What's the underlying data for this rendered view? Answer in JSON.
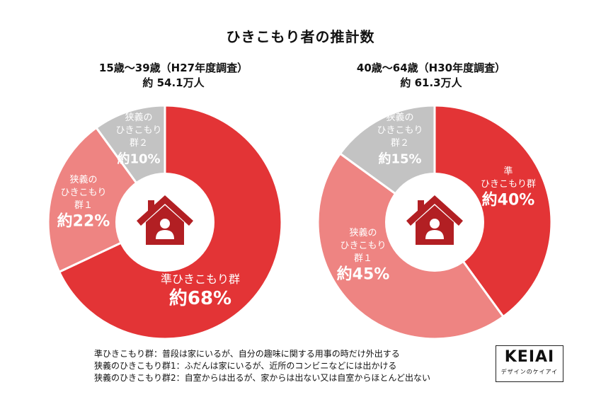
{
  "title": "ひきこもり者の推計数",
  "colors": {
    "dark_red": "#e33436",
    "light_red": "#ee8482",
    "gray": "#c3c3c3",
    "icon": "#b21f23"
  },
  "chart_data": [
    {
      "type": "pie",
      "variant": "donut",
      "title_line1": "15歳〜39歳（H27年度調査）",
      "title_line2": "約 54.1万人",
      "slices": [
        {
          "name": "準ひきこもり群",
          "value": 68,
          "color": "#e33436",
          "label_lines": [
            "準ひきこもり群"
          ],
          "value_text": "約68%"
        },
        {
          "name": "狭義のひきこもり群1",
          "value": 22,
          "color": "#ee8482",
          "label_lines": [
            "狭義の",
            "ひきこもり",
            "群１"
          ],
          "value_text": "約22%"
        },
        {
          "name": "狭義のひきこもり群2",
          "value": 10,
          "color": "#c3c3c3",
          "label_lines": [
            "狭義の",
            "ひきこもり",
            "群２"
          ],
          "value_text": "約10%"
        }
      ]
    },
    {
      "type": "pie",
      "variant": "donut",
      "title_line1": "40歳〜64歳（H30年度調査）",
      "title_line2": "約 61.3万人",
      "slices": [
        {
          "name": "準ひきこもり群",
          "value": 40,
          "color": "#e33436",
          "label_lines": [
            "準",
            "ひきこもり群"
          ],
          "value_text": "約40%"
        },
        {
          "name": "狭義のひきこもり群1",
          "value": 45,
          "color": "#ee8482",
          "label_lines": [
            "狭義の",
            "ひきこもり",
            "群１"
          ],
          "value_text": "約45%"
        },
        {
          "name": "狭義のひきこもり群2",
          "value": 15,
          "color": "#c3c3c3",
          "label_lines": [
            "狭義の",
            "ひきこもり",
            "群２"
          ],
          "value_text": "約15%"
        }
      ]
    }
  ],
  "legend": [
    "準ひきこもり群：普段は家にいるが、自分の趣味に関する用事の時だけ外出する",
    "狭義のひきこもり群1：ふだんは家にいるが、近所のコンビニなどには出かける",
    "狭義のひきこもり群2：自室からは出るが、家からは出ない又は自室からほとんど出ない"
  ],
  "logo": {
    "brand": "KEIAI",
    "tagline": "デザインのケイアイ"
  }
}
